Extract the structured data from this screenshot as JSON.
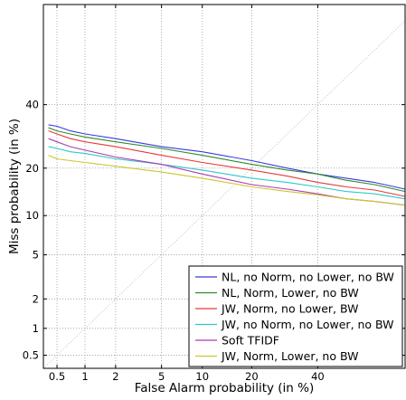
{
  "chart_data": {
    "type": "line",
    "title": "",
    "xlabel": "False Alarm probability (in %)",
    "ylabel": "Miss probability (in %)",
    "scale": "normal-deviate (DET)",
    "xlim": [
      0.35,
      70
    ],
    "ylim": [
      0.35,
      75
    ],
    "x_ticks": [
      {
        "value": 0.5,
        "label": "0.5"
      },
      {
        "value": 1,
        "label": "1"
      },
      {
        "value": 2,
        "label": "2"
      },
      {
        "value": 5,
        "label": "5"
      },
      {
        "value": 10,
        "label": "10"
      },
      {
        "value": 20,
        "label": "20"
      },
      {
        "value": 40,
        "label": "40"
      }
    ],
    "y_ticks": [
      {
        "value": 0.5,
        "label": "0.5"
      },
      {
        "value": 1,
        "label": "1"
      },
      {
        "value": 2,
        "label": "2"
      },
      {
        "value": 5,
        "label": "5"
      },
      {
        "value": 10,
        "label": "10"
      },
      {
        "value": 20,
        "label": "20"
      },
      {
        "value": 40,
        "label": "40"
      }
    ],
    "grid": true,
    "legend_position": "bottom-right",
    "reference_line": {
      "color": "#bbbbbb",
      "style": "dotted"
    },
    "series": [
      {
        "name": "NL, no Norm, no Lower, no BW",
        "color": "#3b3bdb",
        "x": [
          0.4,
          0.5,
          0.7,
          1,
          2,
          5,
          10,
          20,
          30,
          40,
          50,
          60,
          70
        ],
        "y": [
          33,
          32.5,
          31,
          30,
          28.5,
          26,
          24.5,
          22,
          20,
          18.5,
          17.5,
          16.5,
          15
        ]
      },
      {
        "name": "NL, Norm, Lower, no BW",
        "color": "#2e8b2e",
        "x": [
          0.4,
          0.5,
          0.7,
          1,
          2,
          5,
          10,
          20,
          30,
          40,
          50,
          60,
          70
        ],
        "y": [
          32,
          31,
          30,
          29,
          27.5,
          25.5,
          23.5,
          21,
          19.5,
          18.5,
          17,
          16,
          14.5
        ]
      },
      {
        "name": "JW, Norm, no Lower, BW",
        "color": "#e83a3a",
        "x": [
          0.4,
          0.5,
          0.7,
          1,
          2,
          5,
          10,
          20,
          30,
          40,
          50,
          60,
          70
        ],
        "y": [
          31,
          30,
          28.5,
          27.5,
          26,
          23.5,
          21.5,
          19.5,
          18,
          16.5,
          15.5,
          14.8,
          13.5
        ]
      },
      {
        "name": "JW, no Norm, no Lower, no BW",
        "color": "#2ec8c8",
        "x": [
          0.4,
          0.5,
          0.7,
          1,
          2,
          5,
          10,
          20,
          30,
          40,
          50,
          60,
          70
        ],
        "y": [
          26,
          25.5,
          24.5,
          24,
          22.5,
          21,
          19.5,
          17.5,
          16.5,
          15.5,
          14.5,
          14,
          13
        ]
      },
      {
        "name": "Soft TFIDF",
        "color": "#b03ab0",
        "x": [
          0.4,
          0.5,
          0.7,
          1,
          2,
          5,
          10,
          20,
          30,
          40,
          50,
          60,
          70
        ],
        "y": [
          28.5,
          27.5,
          26,
          25,
          23,
          21,
          18.5,
          16,
          15,
          14,
          13,
          12.5,
          11.8
        ]
      },
      {
        "name": "JW, Norm, Lower, no BW",
        "color": "#c8c82e",
        "x": [
          0.4,
          0.5,
          0.7,
          1,
          2,
          5,
          10,
          20,
          30,
          40,
          50,
          60,
          70
        ],
        "y": [
          23.5,
          22.5,
          22,
          21.5,
          20.5,
          19,
          17.5,
          15.5,
          14.5,
          13.8,
          13,
          12.5,
          11.8
        ]
      }
    ]
  }
}
